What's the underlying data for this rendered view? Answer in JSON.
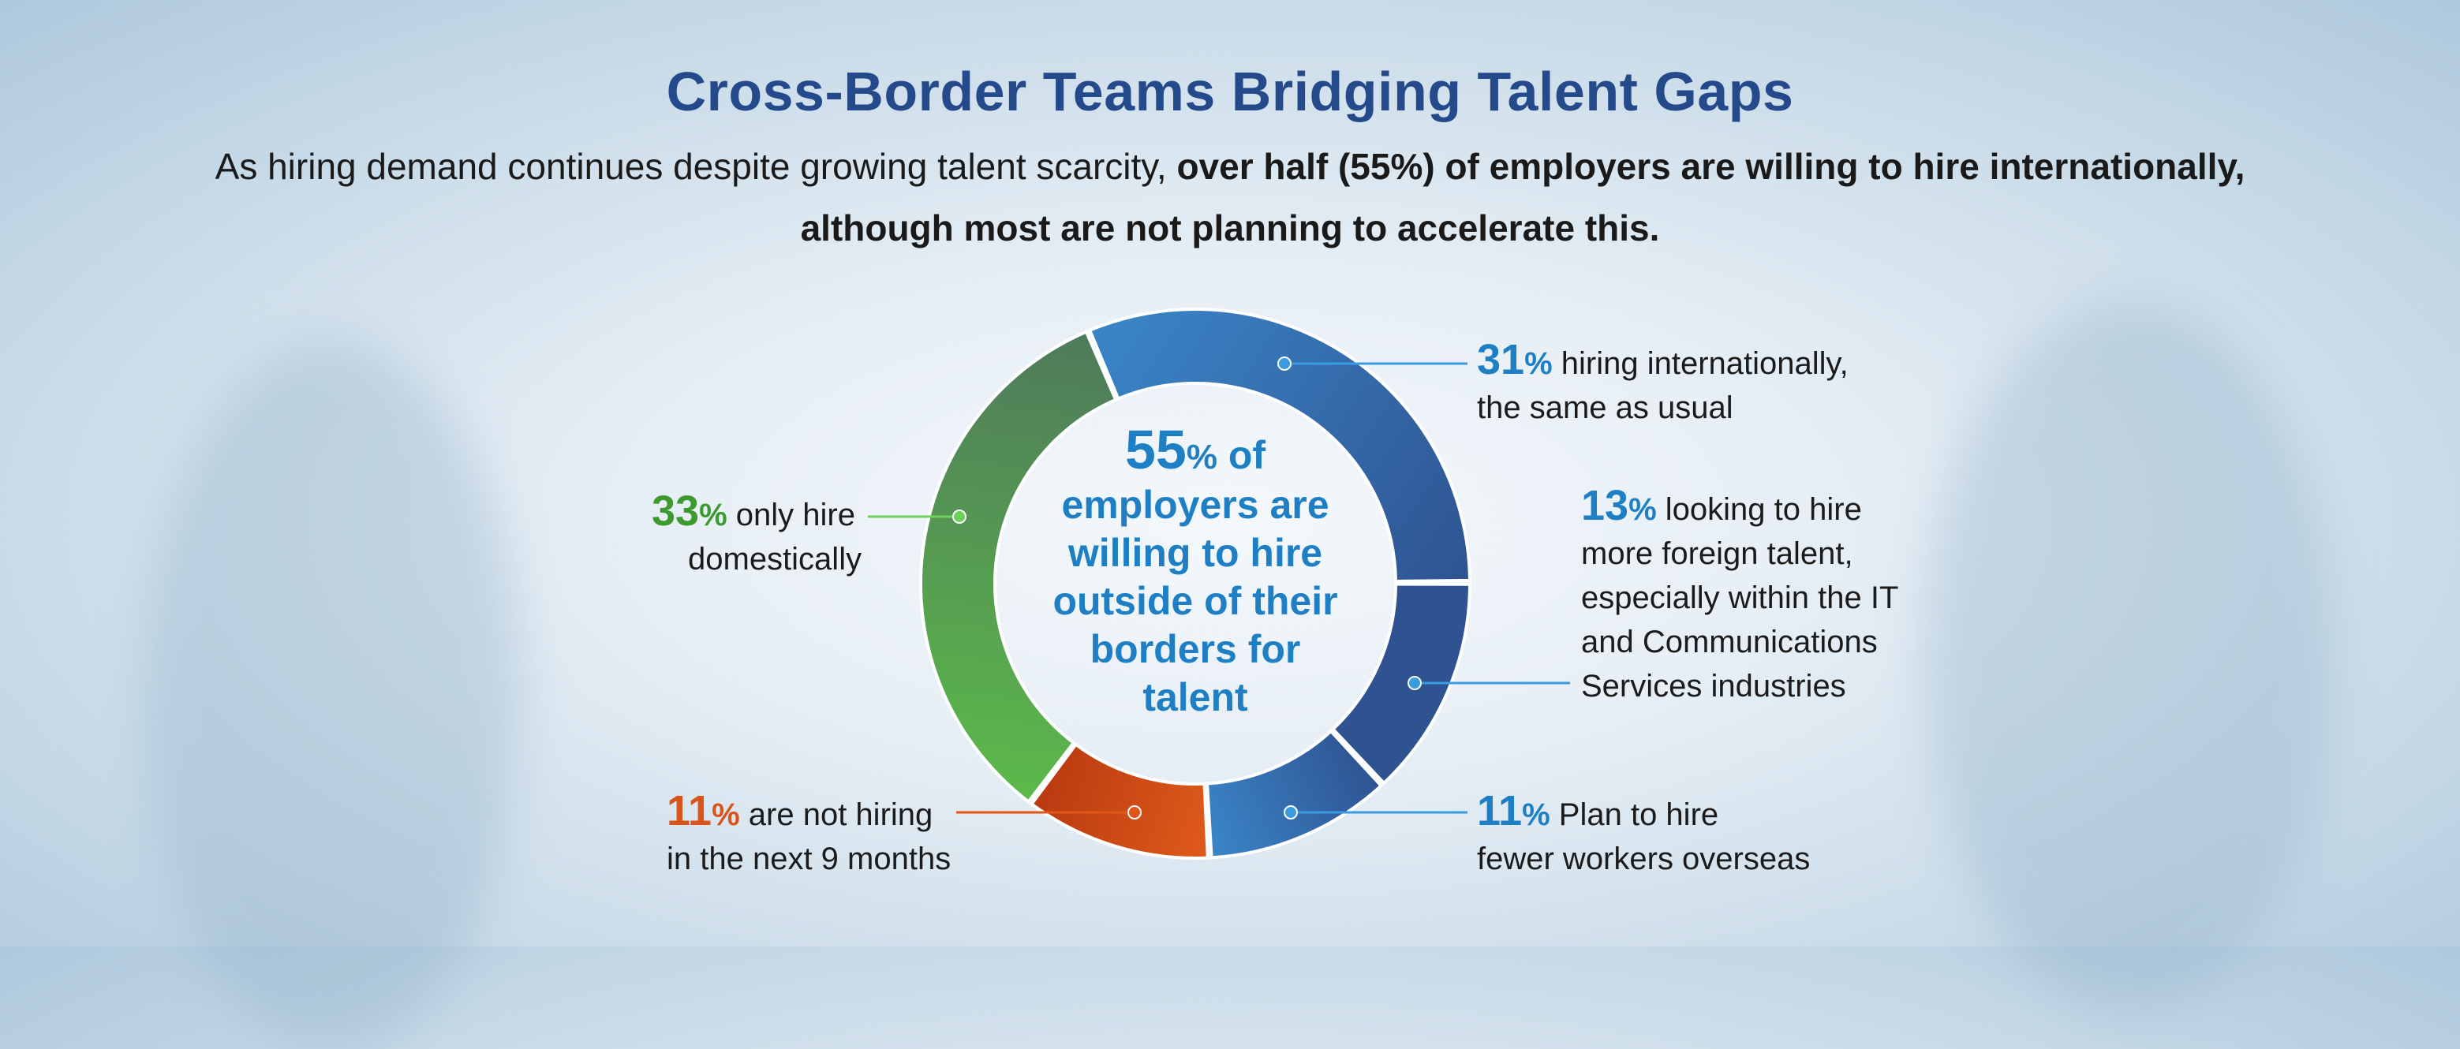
{
  "header": {
    "title": "Cross-Border Teams Bridging Talent Gaps",
    "subtitle_part1": "As hiring demand continues despite growing talent scarcity, ",
    "subtitle_bold1": "over half (55%) of employers are willing to hire internationally,",
    "subtitle_part2": " although most are not planning to accelerate this."
  },
  "center": {
    "value": "55",
    "unit": "%",
    "text_line1": " of",
    "text_rest": "employers are willing to hire outside of their borders for talent"
  },
  "colors": {
    "blue_dark": "#2f5391",
    "blue_light": "#3a86c8",
    "green_dark": "#4f7a5a",
    "green_light": "#5cba4a",
    "orange": "#d9541a",
    "label_blue": "#1f7fc4",
    "label_green": "#3c9a2f",
    "label_orange": "#d9541a",
    "title": "#254a8c"
  },
  "chart_data": {
    "type": "pie",
    "donut": true,
    "title": "Cross-Border Teams Bridging Talent Gaps",
    "center_label": "55% of employers are willing to hire outside of their borders for talent",
    "slices": [
      {
        "value": 31,
        "label": "hiring internationally, the same as usual",
        "color_start": "#3a86c8",
        "color_end": "#2f5391"
      },
      {
        "value": 13,
        "label": "looking to hire more foreign talent, especially within the IT and Communications Services industries",
        "color_start": "#2f5391",
        "color_end": "#2f5391"
      },
      {
        "value": 11,
        "label": "Plan to hire fewer workers overseas",
        "color_start": "#2f5391",
        "color_end": "#3a86c8"
      },
      {
        "value": 11,
        "label": "are not hiring in the next 9 months",
        "color_start": "#e05a1a",
        "color_end": "#b83a10"
      },
      {
        "value": 33,
        "label": "only hire domestically",
        "color_start": "#5cba4a",
        "color_end": "#4f7a5a"
      }
    ]
  },
  "labels": {
    "l31": {
      "value": "31",
      "unit": "%",
      "text1": " hiring internationally,",
      "text2": "the same as usual"
    },
    "l13": {
      "value": "13",
      "unit": "%",
      "text1": " looking to hire",
      "text2": "more foreign talent,",
      "text3": "especially within the IT",
      "text4": "and Communications",
      "text5": "Services industries"
    },
    "l11a": {
      "value": "11",
      "unit": "%",
      "text1": " Plan to hire",
      "text2": "fewer workers overseas"
    },
    "l11b": {
      "value": "11",
      "unit": "%",
      "text1": " are not hiring",
      "text2": "in the next 9 months"
    },
    "l33": {
      "value": "33",
      "unit": "%",
      "text1": " only hire",
      "text2": "domestically"
    }
  }
}
